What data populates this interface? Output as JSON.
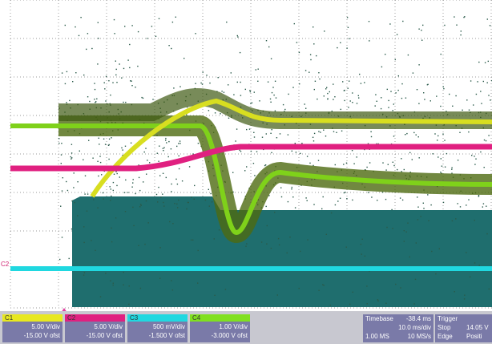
{
  "channels": [
    {
      "label": "C1",
      "scale": "5.00 V/div",
      "offset": "-15.00 V ofst"
    },
    {
      "label": "C2",
      "scale": "5.00 V/div",
      "offset": "-15.00 V ofst"
    },
    {
      "label": "C3",
      "scale": "500 mV/div",
      "offset": "-1.500 V ofst"
    },
    {
      "label": "C4",
      "scale": "1.00 V/div",
      "offset": "-3.000 V ofst"
    }
  ],
  "timebase": {
    "title": "Timebase",
    "delay": "-38.4 ms",
    "scale": "10.0 ms/div",
    "samples": "1.00 MS",
    "rate": "10 MS/s"
  },
  "trigger": {
    "title": "Trigger",
    "mode": "Stop",
    "level": "14.05 V",
    "type": "Edge",
    "slope": "Positi"
  }
}
